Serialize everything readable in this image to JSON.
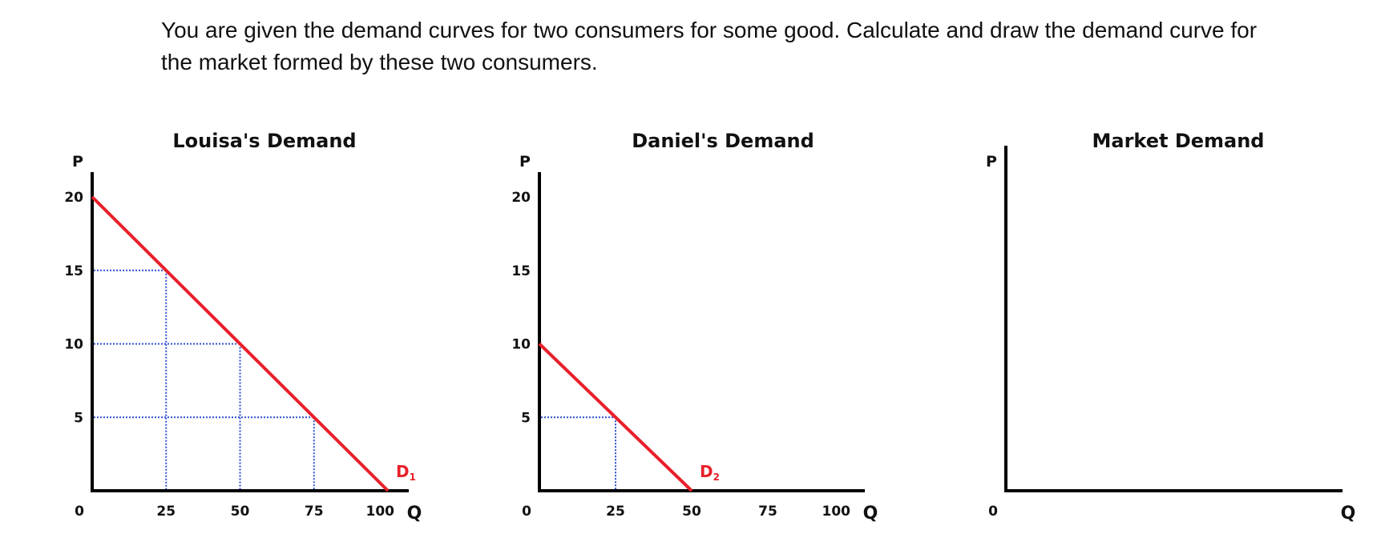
{
  "instructions": "You are given the demand curves for two consumers for some good. Calculate and draw the demand curve for the market formed by these two consumers.",
  "colors": {
    "demand_line": "#e8202a",
    "guide_line": "#2b4fd6",
    "axis": "#000000"
  },
  "chart_data": [
    {
      "type": "line",
      "title": "Louisa's Demand",
      "xlabel": "Q",
      "ylabel": "P",
      "x_ticks": [
        "0",
        "25",
        "50",
        "75",
        "100"
      ],
      "y_ticks": [
        "0",
        "5",
        "10",
        "15",
        "20"
      ],
      "xlim": [
        0,
        100
      ],
      "ylim": [
        0,
        20
      ],
      "series": [
        {
          "name": "D1",
          "label_main": "D",
          "label_sub": "1",
          "points": [
            [
              0,
              20
            ],
            [
              100,
              0
            ]
          ]
        }
      ],
      "guides": [
        [
          25,
          15
        ],
        [
          50,
          10
        ],
        [
          75,
          5
        ]
      ],
      "grid": false
    },
    {
      "type": "line",
      "title": "Daniel's Demand",
      "xlabel": "Q",
      "ylabel": "P",
      "x_ticks": [
        "0",
        "25",
        "50",
        "75",
        "100"
      ],
      "y_ticks": [
        "0",
        "5",
        "10",
        "15",
        "20"
      ],
      "xlim": [
        0,
        100
      ],
      "ylim": [
        0,
        20
      ],
      "series": [
        {
          "name": "D2",
          "label_main": "D",
          "label_sub": "2",
          "points": [
            [
              0,
              10
            ],
            [
              50,
              0
            ]
          ]
        }
      ],
      "guides": [
        [
          25,
          5
        ]
      ],
      "grid": false
    },
    {
      "type": "line",
      "title": "Market Demand",
      "xlabel": "Q",
      "ylabel": "P",
      "x_ticks": [
        "0"
      ],
      "y_ticks": [],
      "series": [],
      "guides": [],
      "grid": false
    }
  ]
}
